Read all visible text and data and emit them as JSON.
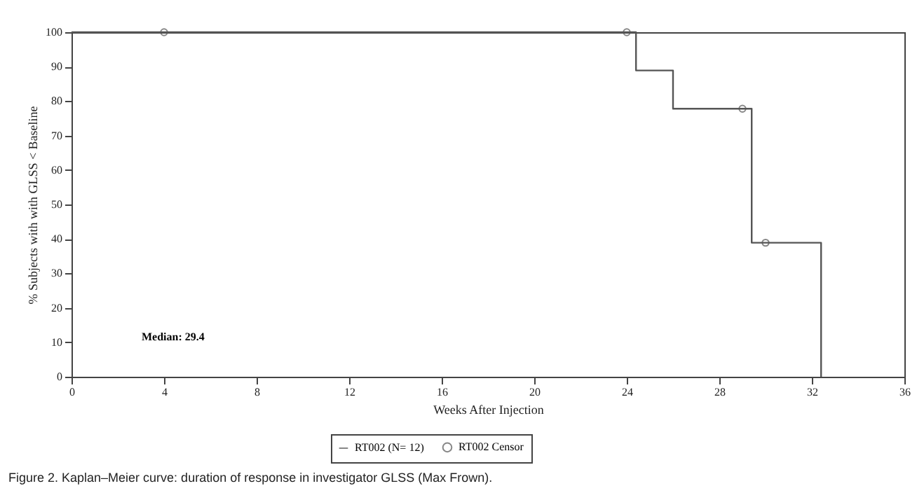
{
  "chart_data": {
    "type": "step",
    "ylabel": "% Subjects with with GLSS < Baseline",
    "xlabel": "Weeks After Injection",
    "xlim": [
      0,
      36
    ],
    "xticks": [
      0,
      4,
      8,
      12,
      16,
      20,
      24,
      28,
      32,
      36
    ],
    "ylim": [
      0,
      100
    ],
    "yticks": [
      0,
      10,
      20,
      30,
      40,
      50,
      60,
      70,
      80,
      90,
      100
    ],
    "series": [
      {
        "name": "RT002 (N= 12)",
        "type": "step",
        "color": "#555555",
        "marker": "none",
        "x": [
          0,
          24.4,
          26,
          29.4,
          32.4
        ],
        "values": [
          100,
          88.9,
          77.8,
          38.9,
          0
        ]
      },
      {
        "name": "RT002 Censor",
        "type": "scatter",
        "color": "#555555",
        "marker": "circle",
        "x": [
          4,
          24,
          29,
          30
        ],
        "values": [
          100,
          100,
          77.8,
          38.9
        ]
      }
    ],
    "legend": "bottom",
    "grid": false,
    "annotations": [
      "Median:   29.4",
      "Figure 2. Kaplan–Meier curve: duration of response in investigator GLSS (Max Frown)."
    ]
  }
}
